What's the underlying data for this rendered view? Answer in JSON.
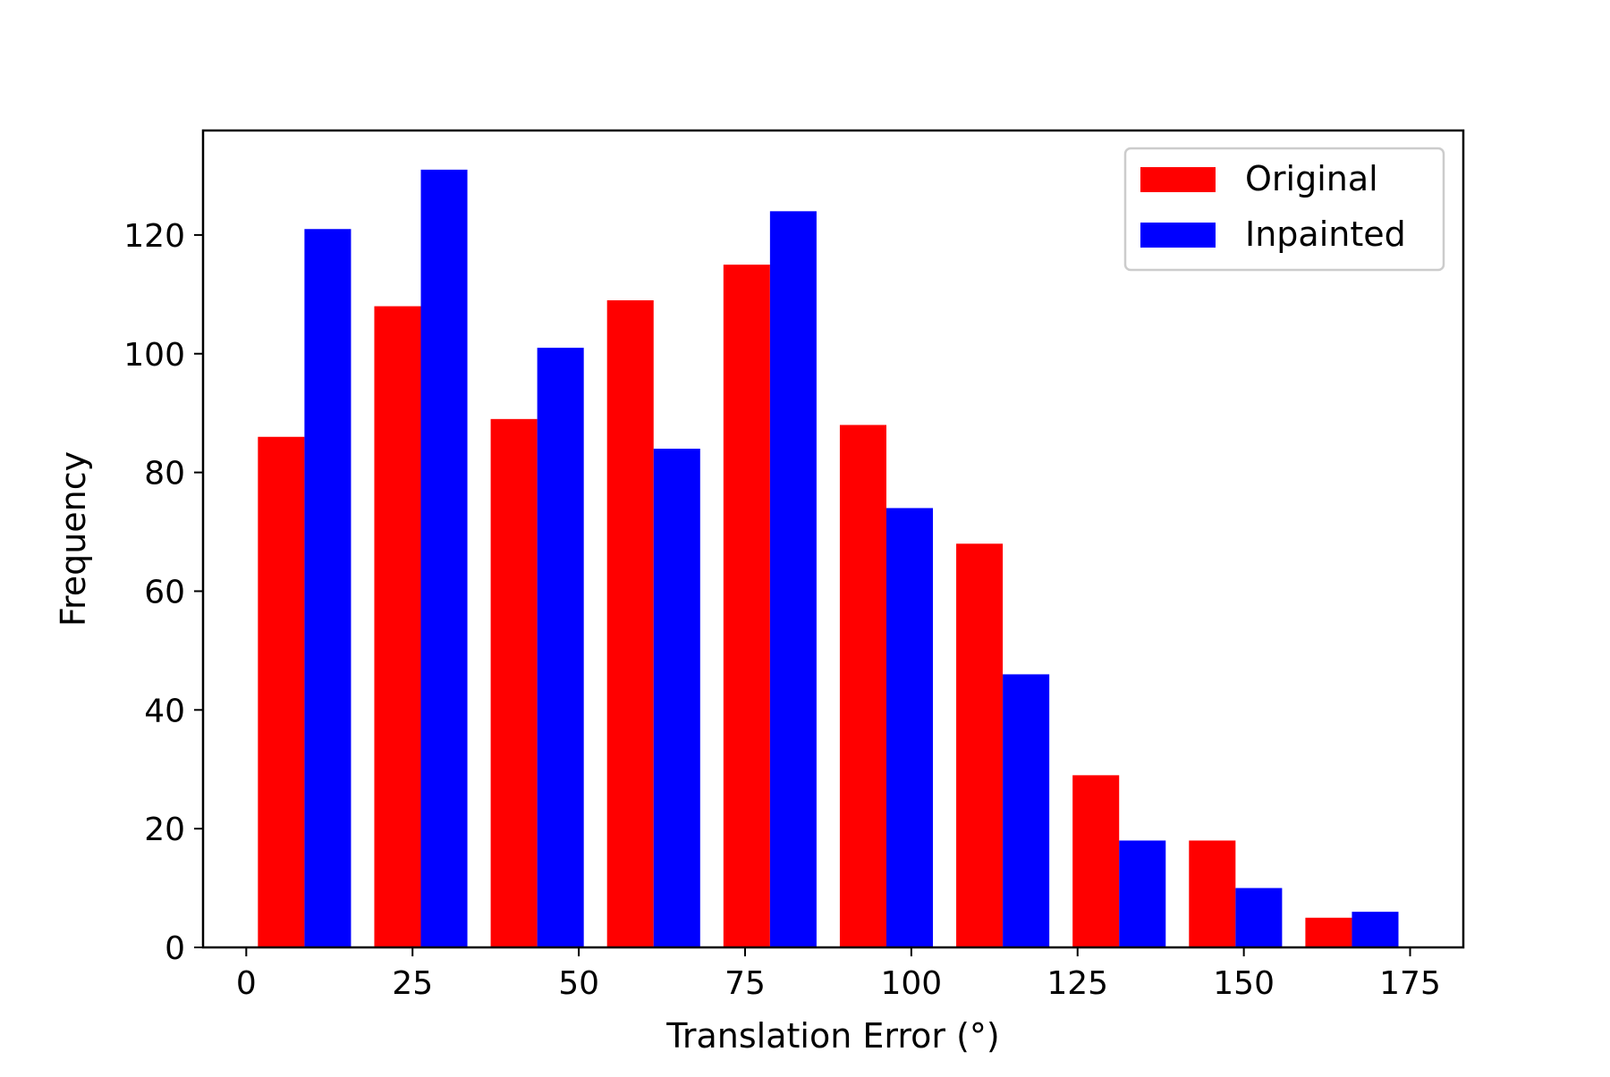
{
  "chart_data": {
    "type": "bar",
    "title": "",
    "xlabel": "Translation Error (°)",
    "ylabel": "Frequency",
    "xlim": [
      -6.5,
      183
    ],
    "ylim": [
      0,
      137.6
    ],
    "bin_edges": [
      0,
      17.5,
      35,
      52.5,
      70,
      87.5,
      105,
      122.5,
      140,
      157.5,
      175
    ],
    "x_ticks": [
      0,
      25,
      50,
      75,
      100,
      125,
      150,
      175
    ],
    "y_ticks": [
      0,
      20,
      40,
      60,
      80,
      100,
      120
    ],
    "series": [
      {
        "name": "Original",
        "color": "#ff0000",
        "values": [
          86,
          108,
          89,
          109,
          115,
          88,
          68,
          29,
          18,
          5
        ]
      },
      {
        "name": "Inpainted",
        "color": "#0000ff",
        "values": [
          121,
          131,
          101,
          84,
          124,
          74,
          46,
          18,
          10,
          6
        ]
      }
    ],
    "grid": false,
    "legend_position": "top-right"
  }
}
